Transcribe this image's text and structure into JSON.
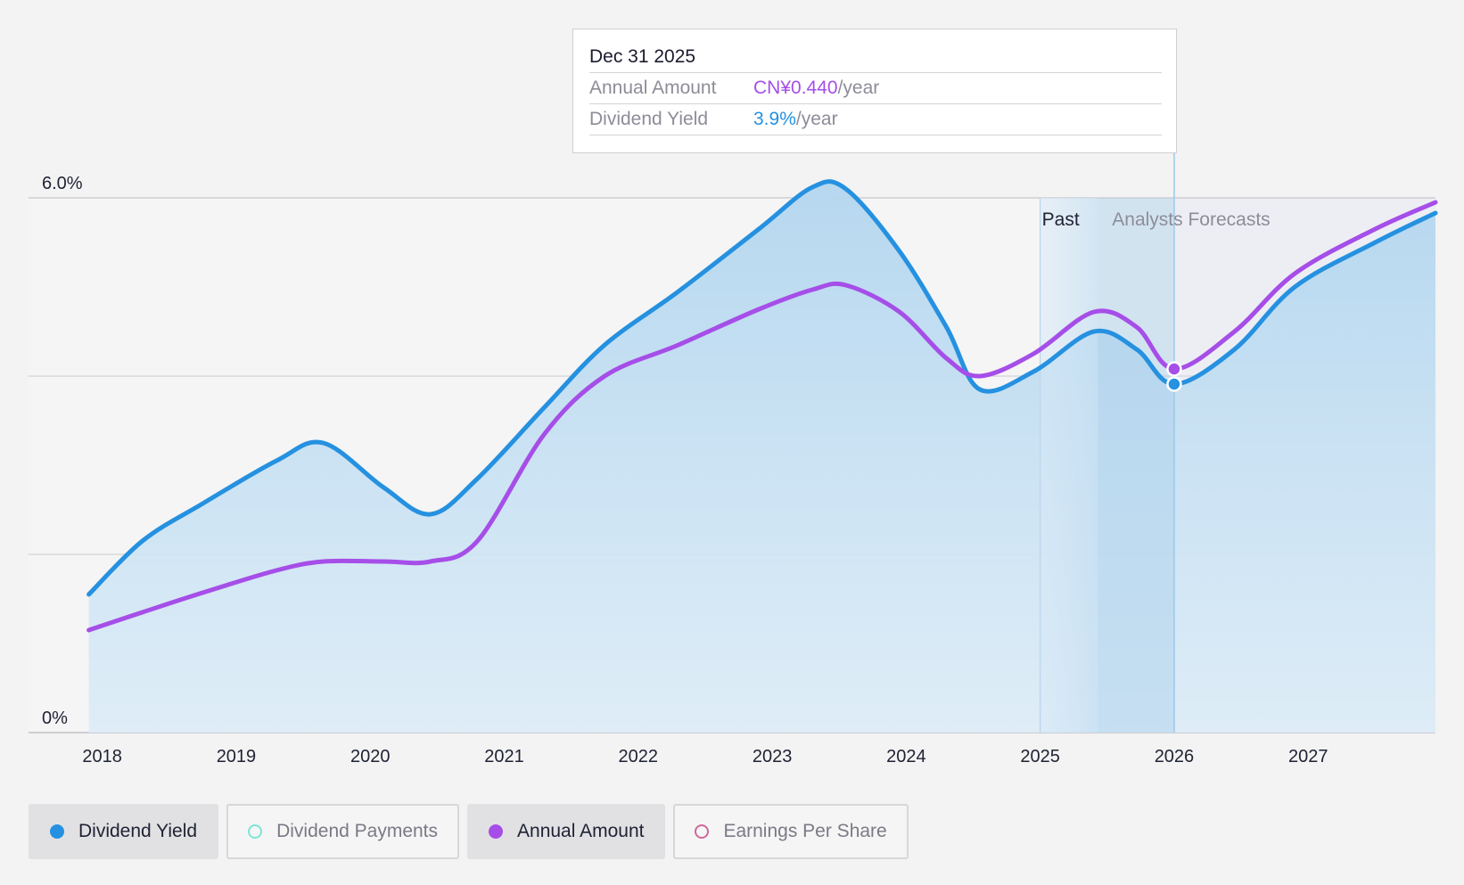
{
  "chart_data": {
    "type": "line",
    "y_ticks": [
      {
        "value": 6.0,
        "label": "6.0%"
      },
      {
        "value": 0,
        "label": "0%"
      }
    ],
    "ylim": [
      0,
      6.0
    ],
    "xlim": [
      2017.45,
      2027.95
    ],
    "x_ticks": [
      "2018",
      "2019",
      "2020",
      "2021",
      "2022",
      "2023",
      "2024",
      "2025",
      "2026",
      "2027"
    ],
    "grid": true,
    "past_label": "Past",
    "forecast_label": "Analysts Forecasts",
    "past_region": [
      2025.0,
      2025.43
    ],
    "forecast_start": 2026.0,
    "series": [
      {
        "name": "Dividend Yield",
        "color": "#2591e0",
        "points": [
          [
            2017.9,
            1.55
          ],
          [
            2018.3,
            2.15
          ],
          [
            2018.75,
            2.57
          ],
          [
            2019.3,
            3.05
          ],
          [
            2019.65,
            3.25
          ],
          [
            2020.1,
            2.75
          ],
          [
            2020.45,
            2.45
          ],
          [
            2020.8,
            2.85
          ],
          [
            2021.3,
            3.65
          ],
          [
            2021.75,
            4.35
          ],
          [
            2022.3,
            4.95
          ],
          [
            2022.9,
            5.65
          ],
          [
            2023.3,
            6.12
          ],
          [
            2023.55,
            6.1
          ],
          [
            2023.95,
            5.4
          ],
          [
            2024.3,
            4.55
          ],
          [
            2024.55,
            3.85
          ],
          [
            2024.95,
            4.05
          ],
          [
            2025.4,
            4.5
          ],
          [
            2025.72,
            4.3
          ],
          [
            2026.0,
            3.91
          ],
          [
            2026.45,
            4.3
          ],
          [
            2026.9,
            5.0
          ],
          [
            2027.5,
            5.5
          ],
          [
            2027.95,
            5.83
          ]
        ]
      },
      {
        "name": "Annual Amount",
        "color": "#a64ee8",
        "points": [
          [
            2017.9,
            1.15
          ],
          [
            2018.3,
            1.35
          ],
          [
            2018.75,
            1.57
          ],
          [
            2019.3,
            1.82
          ],
          [
            2019.65,
            1.92
          ],
          [
            2020.1,
            1.92
          ],
          [
            2020.45,
            1.92
          ],
          [
            2020.8,
            2.15
          ],
          [
            2021.3,
            3.35
          ],
          [
            2021.75,
            4.0
          ],
          [
            2022.3,
            4.35
          ],
          [
            2022.9,
            4.75
          ],
          [
            2023.3,
            4.97
          ],
          [
            2023.55,
            5.02
          ],
          [
            2023.95,
            4.72
          ],
          [
            2024.3,
            4.2
          ],
          [
            2024.55,
            4.0
          ],
          [
            2024.95,
            4.25
          ],
          [
            2025.4,
            4.72
          ],
          [
            2025.72,
            4.55
          ],
          [
            2026.0,
            4.08
          ],
          [
            2026.45,
            4.5
          ],
          [
            2026.9,
            5.15
          ],
          [
            2027.5,
            5.65
          ],
          [
            2027.95,
            5.95
          ]
        ]
      }
    ],
    "tooltip": {
      "date": "Dec 31 2025",
      "annual_amount_label": "Annual Amount",
      "annual_amount_value": "CN¥0.440",
      "annual_amount_unit": "/year",
      "dividend_yield_label": "Dividend Yield",
      "dividend_yield_value": "3.9%",
      "dividend_yield_unit": "/year",
      "x": 2026.0,
      "yield_y": 3.91,
      "amount_y": 4.08
    }
  },
  "legend": [
    {
      "label": "Dividend Yield",
      "color": "#2591e0",
      "filled": true,
      "active": true
    },
    {
      "label": "Dividend Payments",
      "color": "#7fe3d6",
      "filled": false,
      "active": false
    },
    {
      "label": "Annual Amount",
      "color": "#a64ee8",
      "filled": true,
      "active": true
    },
    {
      "label": "Earnings Per Share",
      "color": "#d0679a",
      "filled": false,
      "active": false
    }
  ]
}
